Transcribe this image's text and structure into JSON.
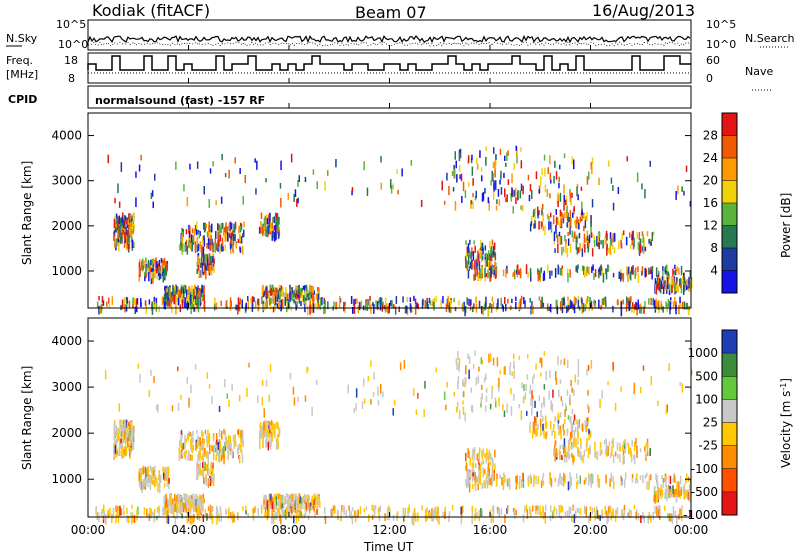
{
  "header": {
    "station": "Kodiak (fitACF)",
    "beam": "Beam 07",
    "date": "16/Aug/2013"
  },
  "top_panels": {
    "nsky_label": "N.Sky",
    "nsky_ticks": [
      "10^5",
      "10^0"
    ],
    "nsearch_label": "N.Search",
    "nsearch_ticks": [
      "10^5",
      "10^0"
    ],
    "freq_label_1": "Freq.",
    "freq_label_2": "[MHz]",
    "freq_ticks": [
      "18",
      "8"
    ],
    "nave_label": "Nave",
    "nave_ticks": [
      "60",
      "0"
    ],
    "cpid_label": "CPID",
    "cpid_text": "normalsound (fast) -157 RF"
  },
  "chart_data": [
    {
      "type": "heatmap",
      "title": "",
      "xlabel": "",
      "ylabel": "Slant Range [km]",
      "ylim": [
        180,
        4500
      ],
      "yticks": [
        "1000",
        "2000",
        "3000",
        "4000"
      ],
      "colorbar_label": "Power [dB]",
      "colorbar_ticks": [
        "28",
        "24",
        "20",
        "16",
        "12",
        "8",
        "4"
      ],
      "colorbar_colors": [
        "#e31414",
        "#f05a00",
        "#ff9900",
        "#f0d20a",
        "#5ab43c",
        "#287850",
        "#1e3ca0",
        "#1414e6"
      ]
    },
    {
      "type": "heatmap",
      "title": "",
      "xlabel": "Time UT",
      "ylabel": "Slant Range [km]",
      "ylim": [
        180,
        4500
      ],
      "yticks": [
        "1000",
        "2000",
        "3000",
        "4000"
      ],
      "xticks": [
        "00:00",
        "04:00",
        "08:00",
        "12:00",
        "16:00",
        "20:00",
        "00:00"
      ],
      "colorbar_label": "Velocity [m s^-1]",
      "colorbar_ticks": [
        "1000",
        "500",
        "100",
        "25",
        "-25",
        "-100",
        "-500",
        "-1000"
      ],
      "colorbar_colors": [
        "#1e3cb4",
        "#3c8c3c",
        "#64c83c",
        "#c8c8c8",
        "#ffc800",
        "#ff8c00",
        "#ff5000",
        "#e61414"
      ]
    }
  ]
}
